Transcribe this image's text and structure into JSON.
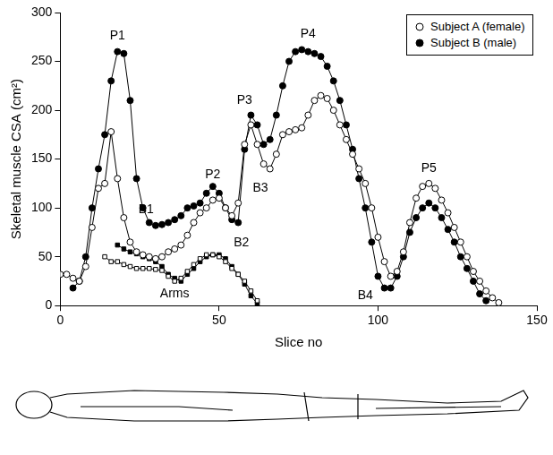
{
  "chart_data": {
    "type": "line",
    "x_label": "Slice no",
    "y_label": "Skeletal muscle CSA (cm²)",
    "xlim": [
      0,
      150
    ],
    "xticks": [
      0,
      50,
      100,
      150
    ],
    "ylim": [
      0,
      300
    ],
    "yticks": [
      0,
      50,
      100,
      150,
      200,
      250,
      300
    ],
    "grid": false,
    "legend": "upper right",
    "series": [
      {
        "name": "Subject A (female)",
        "color": "#000000",
        "marker": "open_circle",
        "x": [
          0,
          2,
          4,
          6,
          8,
          10,
          12,
          14,
          16,
          18,
          20,
          22,
          24,
          26,
          28,
          30,
          32,
          34,
          36,
          38,
          40,
          42,
          44,
          46,
          48,
          50,
          52,
          54,
          56,
          58,
          60,
          62,
          64,
          66,
          68,
          70,
          72,
          74,
          76,
          78,
          80,
          82,
          84,
          86,
          88,
          90,
          92,
          94,
          96,
          98,
          100,
          102,
          104,
          106,
          108,
          110,
          112,
          114,
          116,
          118,
          120,
          122,
          124,
          126,
          128,
          130,
          132,
          134,
          136,
          138
        ],
        "values": [
          32,
          32,
          28,
          25,
          40,
          80,
          120,
          125,
          178,
          130,
          90,
          65,
          55,
          52,
          50,
          48,
          50,
          55,
          58,
          62,
          72,
          85,
          95,
          100,
          108,
          110,
          100,
          92,
          105,
          165,
          185,
          165,
          145,
          140,
          155,
          175,
          178,
          180,
          182,
          195,
          210,
          215,
          212,
          200,
          185,
          170,
          155,
          140,
          125,
          100,
          70,
          45,
          30,
          35,
          55,
          85,
          110,
          122,
          125,
          120,
          108,
          95,
          80,
          65,
          50,
          35,
          25,
          15,
          8,
          3
        ]
      },
      {
        "name": "Subject B (male)",
        "color": "#000000",
        "marker": "filled_circle",
        "x": [
          4,
          6,
          8,
          10,
          12,
          14,
          16,
          18,
          20,
          22,
          24,
          26,
          28,
          30,
          32,
          34,
          36,
          38,
          40,
          42,
          44,
          46,
          48,
          50,
          52,
          54,
          56,
          58,
          60,
          62,
          64,
          66,
          68,
          70,
          72,
          74,
          76,
          78,
          80,
          82,
          84,
          86,
          88,
          90,
          92,
          94,
          96,
          98,
          100,
          102,
          104,
          106,
          108,
          110,
          112,
          114,
          116,
          118,
          120,
          122,
          124,
          126,
          128,
          130,
          132,
          134
        ],
        "values": [
          18,
          25,
          50,
          100,
          140,
          175,
          230,
          260,
          258,
          210,
          130,
          100,
          85,
          82,
          83,
          85,
          88,
          92,
          100,
          102,
          105,
          115,
          122,
          115,
          100,
          88,
          85,
          160,
          195,
          185,
          165,
          170,
          195,
          225,
          250,
          260,
          262,
          260,
          258,
          255,
          245,
          230,
          210,
          185,
          160,
          130,
          100,
          65,
          30,
          18,
          18,
          30,
          50,
          75,
          90,
          100,
          105,
          100,
          90,
          78,
          65,
          50,
          38,
          25,
          12,
          5
        ]
      },
      {
        "name": "Subject A (female)",
        "color": "#000000",
        "marker": "open_square",
        "x": [
          14,
          16,
          18,
          20,
          22,
          24,
          26,
          28,
          30,
          32,
          34,
          36,
          38,
          40,
          42,
          44,
          46,
          48,
          50,
          52,
          54,
          56,
          58,
          60,
          62
        ],
        "values": [
          50,
          45,
          45,
          42,
          40,
          38,
          38,
          38,
          37,
          36,
          30,
          25,
          28,
          35,
          42,
          48,
          52,
          52,
          50,
          45,
          38,
          32,
          25,
          15,
          5
        ]
      },
      {
        "name": "Subject B (male)",
        "color": "#000000",
        "marker": "filled_square",
        "x": [
          18,
          20,
          22,
          24,
          26,
          28,
          30,
          32,
          34,
          36,
          38,
          40,
          42,
          44,
          46,
          48,
          50,
          52,
          54,
          56,
          58,
          60,
          62
        ],
        "values": [
          62,
          58,
          55,
          53,
          50,
          48,
          45,
          40,
          32,
          28,
          25,
          32,
          38,
          45,
          50,
          52,
          52,
          48,
          40,
          32,
          22,
          10,
          2
        ]
      }
    ],
    "annotations": [
      {
        "text": "P1",
        "x": 18,
        "y": 276
      },
      {
        "text": "B1",
        "x": 27,
        "y": 98
      },
      {
        "text": "P2",
        "x": 48,
        "y": 134
      },
      {
        "text": "B2",
        "x": 57,
        "y": 64
      },
      {
        "text": "P3",
        "x": 58,
        "y": 210
      },
      {
        "text": "B3",
        "x": 63,
        "y": 120
      },
      {
        "text": "P4",
        "x": 78,
        "y": 278
      },
      {
        "text": "B4",
        "x": 96,
        "y": 10
      },
      {
        "text": "P5",
        "x": 116,
        "y": 140
      },
      {
        "text": "Arms",
        "x": 36,
        "y": 12
      }
    ]
  }
}
